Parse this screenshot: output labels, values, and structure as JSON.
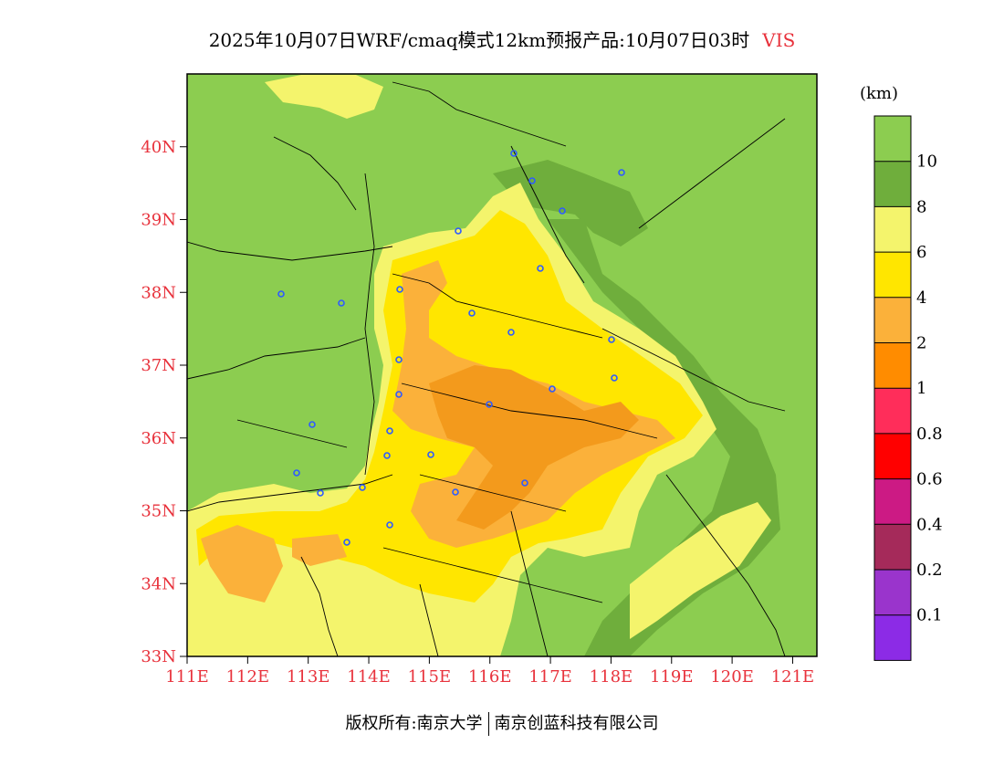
{
  "title": {
    "main": "2025年10月07日WRF/cmaq模式12km预报产品:10月07日03时",
    "variable": "VIS"
  },
  "map": {
    "lat_labels": [
      "40N",
      "39N",
      "38N",
      "37N",
      "36N",
      "35N",
      "34N",
      "33N"
    ],
    "lon_labels": [
      "111E",
      "112E",
      "113E",
      "114E",
      "115E",
      "116E",
      "117E",
      "118E",
      "119E",
      "120E",
      "121E"
    ],
    "lat_values": [
      40,
      39,
      38,
      37,
      36,
      35,
      34,
      33
    ],
    "lon_values": [
      111,
      112,
      113,
      114,
      115,
      116,
      117,
      118,
      119,
      120,
      121
    ],
    "colors": {
      "gt10": "#8ccd50",
      "8to10": "#6fae3c",
      "6to8": "#f4f46c",
      "4to6": "#ffe600",
      "2to4": "#fbb13a",
      "1to2": "#ff8c00",
      "station": "#2e5bff",
      "border": "#000000"
    }
  },
  "legend": {
    "unit": "(km)",
    "labels": [
      "10",
      "8",
      "6",
      "4",
      "2",
      "1",
      "0.8",
      "0.6",
      "0.4",
      "0.2",
      "0.1"
    ],
    "colors": [
      "#8ccd50",
      "#6fae3c",
      "#f4f46c",
      "#ffe600",
      "#fbb13a",
      "#ff8c00",
      "#ff2d5a",
      "#ff0000",
      "#cc1a84",
      "#a52a5a",
      "#9a34cc",
      "#8c2be6"
    ]
  },
  "footer": {
    "left": "版权所有:南京大学",
    "right": "南京创蓝科技有限公司"
  }
}
